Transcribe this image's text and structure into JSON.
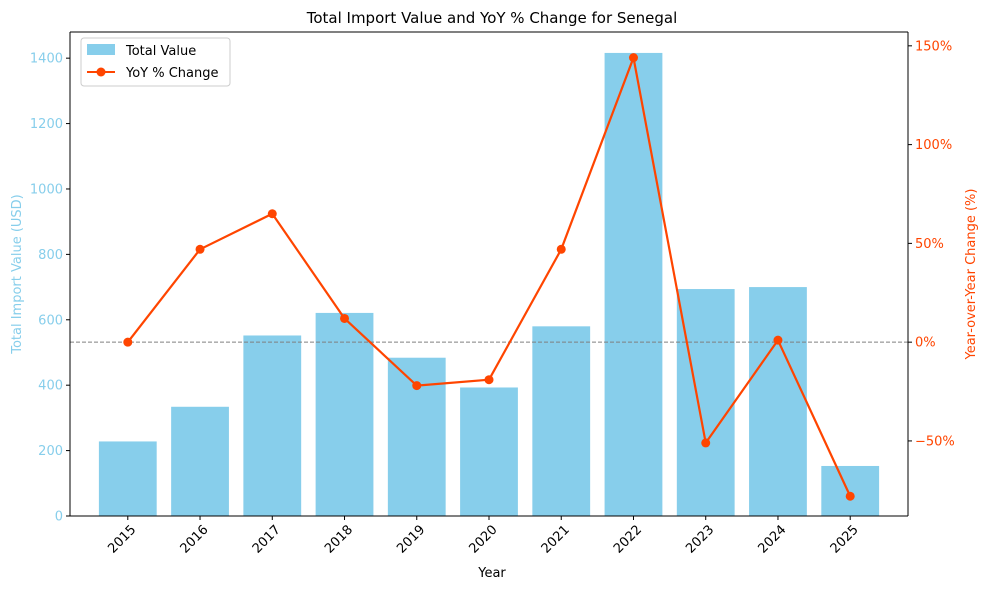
{
  "chart_data": {
    "type": "bar",
    "title": "Total Import Value and YoY % Change for Senegal",
    "xlabel": "Year",
    "ylabel_left": "Total Import Value (USD)",
    "ylabel_right": "Year-over-Year Change (%)",
    "categories": [
      "2015",
      "2016",
      "2017",
      "2018",
      "2019",
      "2020",
      "2021",
      "2022",
      "2023",
      "2024",
      "2025"
    ],
    "ylim_left": [
      0,
      1480
    ],
    "yticks_left": [
      0,
      200,
      400,
      600,
      800,
      1000,
      1200,
      1400
    ],
    "ylim_right": [
      -88,
      157
    ],
    "yticks_right": [
      -50,
      0,
      50,
      100,
      150
    ],
    "ytick_suffix_right": "%",
    "grid": false,
    "legend_position": "top-left",
    "series": [
      {
        "name": "Total Value",
        "type": "bar",
        "axis": "left",
        "color": "#87CEEB",
        "values": [
          228,
          334,
          552,
          621,
          484,
          393,
          580,
          1416,
          694,
          700,
          153
        ]
      },
      {
        "name": "YoY % Change",
        "type": "line",
        "axis": "right",
        "color": "#FF4500",
        "marker": "circle",
        "values": [
          0,
          47,
          65,
          12,
          -22,
          -19,
          47,
          144,
          -51,
          1,
          -78
        ]
      }
    ],
    "reference_line": {
      "axis": "right",
      "value": 0,
      "style": "dashed",
      "color": "#808080"
    }
  }
}
